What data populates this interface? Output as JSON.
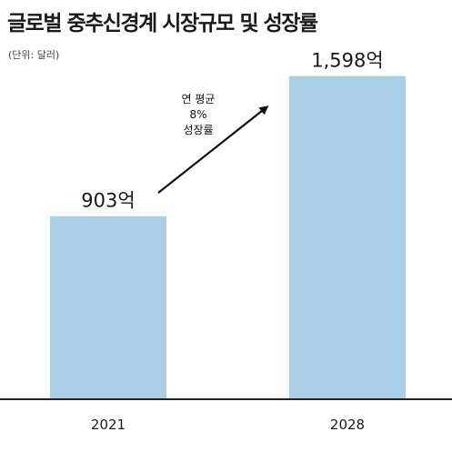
{
  "title": "글로벌 중추신경계 시장규모 및 성장률",
  "unit_note": "(단위: 달러)",
  "annotation_lines": [
    "연 평균",
    "8%",
    "성장률"
  ],
  "colors": {
    "bar": "#aacfe6",
    "axis": "#222222",
    "text": "#1a1a1a"
  },
  "chart_data": {
    "type": "bar",
    "categories": [
      "2021",
      "2028"
    ],
    "values": [
      903,
      1598
    ],
    "value_labels": [
      "903억",
      "1,598억"
    ],
    "ylim": [
      0,
      1700
    ],
    "xlabel": "",
    "ylabel": "",
    "grid": false,
    "annotation": "연 평균 8% 성장률"
  }
}
